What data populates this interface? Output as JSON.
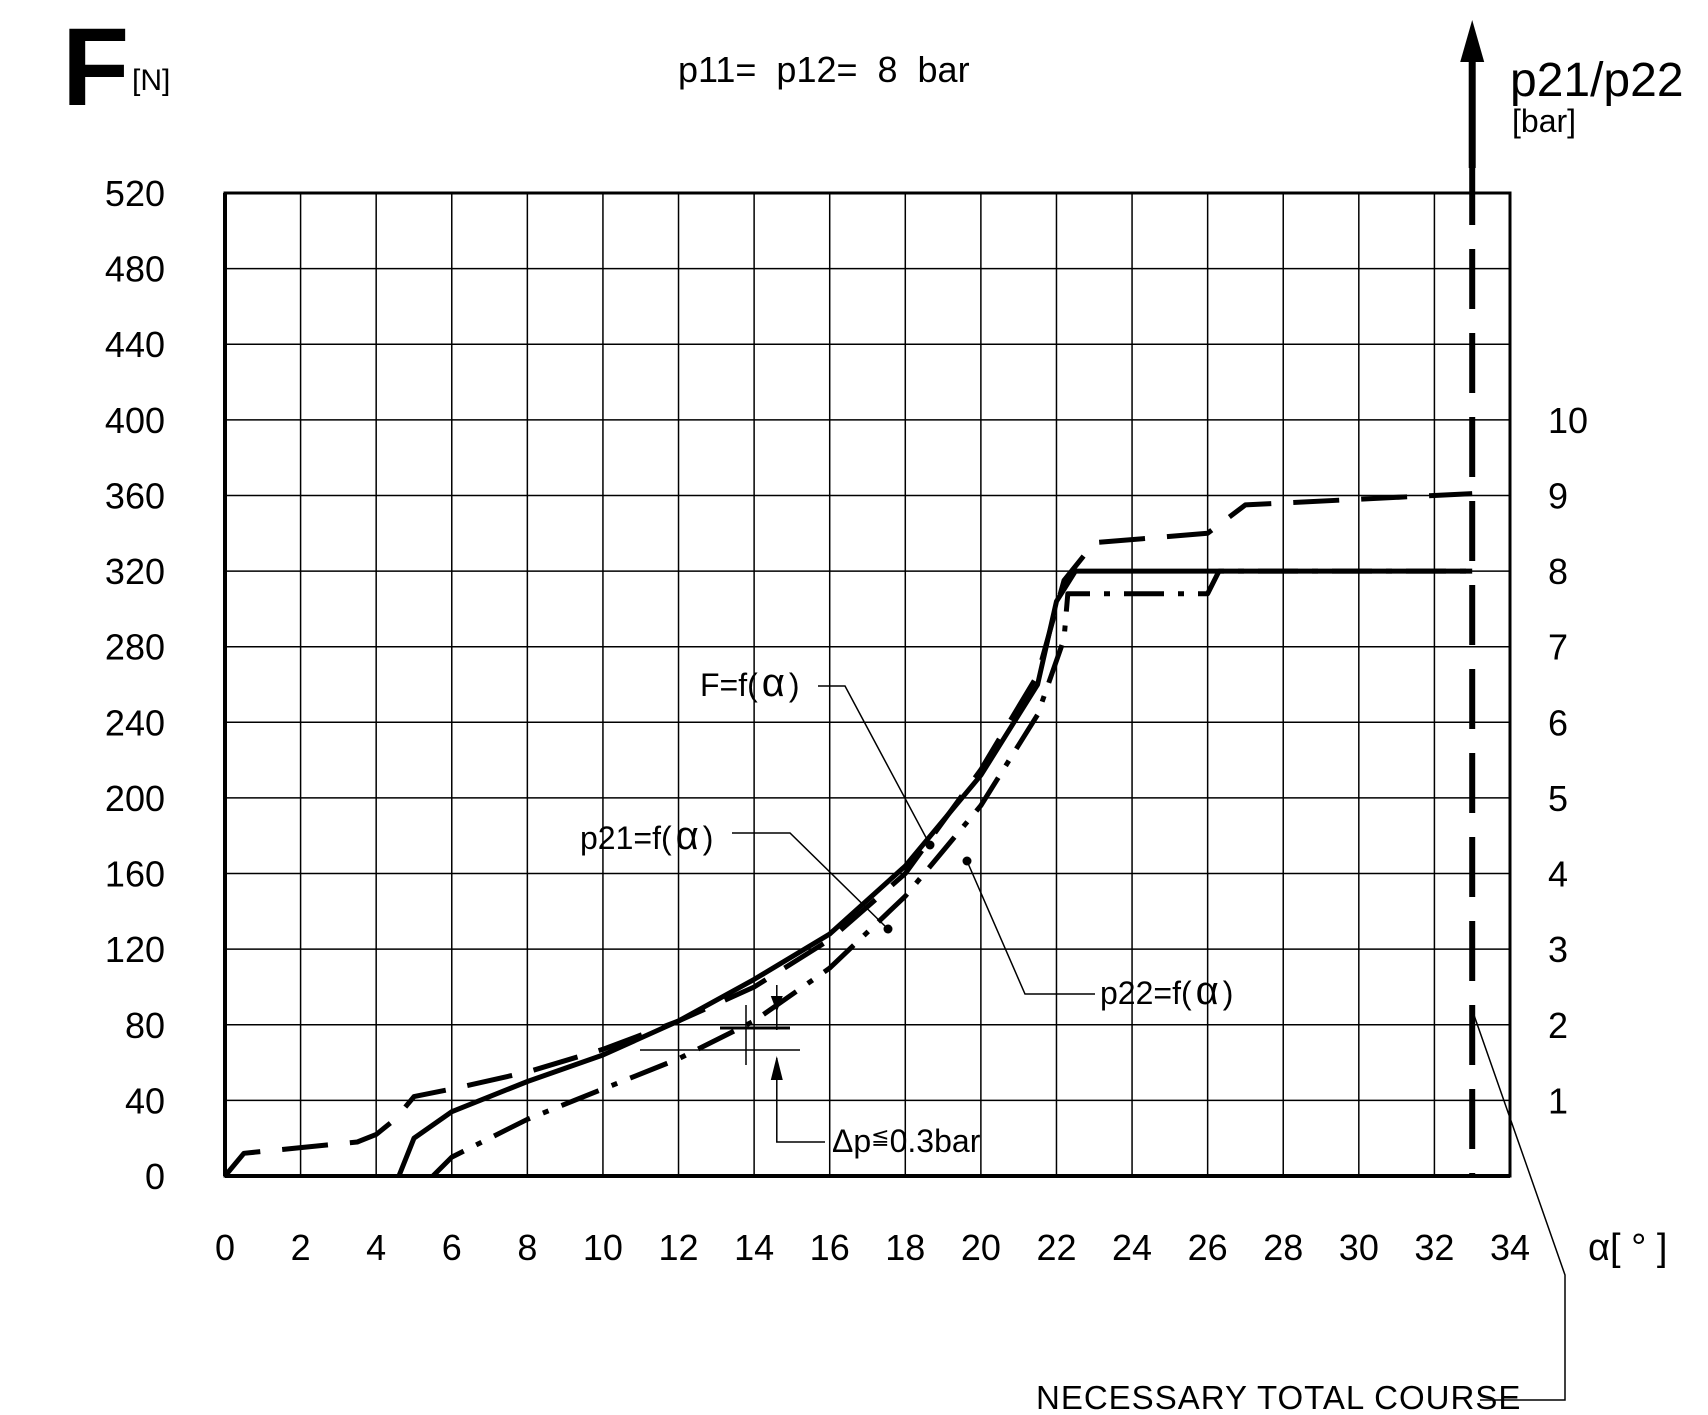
{
  "chart_data": {
    "type": "line",
    "title": "p11=  p12=  8  bar",
    "y_left": {
      "symbol": "F",
      "unit": "[N]",
      "ylim": [
        0,
        520
      ],
      "ticks": [
        "0",
        "40",
        "80",
        "120",
        "160",
        "200",
        "240",
        "280",
        "320",
        "360",
        "400",
        "440",
        "480",
        "520"
      ]
    },
    "y_right": {
      "label": "p21/p22",
      "unit": "[bar]",
      "ylim": [
        0,
        13
      ],
      "ticks": [
        "1",
        "2",
        "3",
        "4",
        "5",
        "6",
        "7",
        "8",
        "9",
        "10"
      ]
    },
    "x_axis": {
      "label": "α[ ° ]",
      "xlim": [
        0,
        34
      ],
      "ticks": [
        "0",
        "2",
        "4",
        "6",
        "8",
        "10",
        "12",
        "14",
        "16",
        "18",
        "20",
        "22",
        "24",
        "26",
        "28",
        "30",
        "32",
        "34"
      ]
    },
    "grid": true,
    "series": [
      {
        "name": "F=f(α)",
        "axis": "left",
        "style": "dashed",
        "points": [
          [
            0,
            0
          ],
          [
            0.5,
            12
          ],
          [
            2,
            15
          ],
          [
            3.5,
            18
          ],
          [
            4,
            22
          ],
          [
            4.5,
            30
          ],
          [
            5,
            42
          ],
          [
            6,
            46
          ],
          [
            8,
            55
          ],
          [
            10,
            67
          ],
          [
            12,
            82
          ],
          [
            14,
            100
          ],
          [
            16,
            125
          ],
          [
            18,
            160
          ],
          [
            20,
            215
          ],
          [
            21.5,
            265
          ],
          [
            22.2,
            315
          ],
          [
            23,
            335
          ],
          [
            26,
            340
          ],
          [
            27,
            355
          ],
          [
            30,
            358
          ],
          [
            33,
            361
          ]
        ]
      },
      {
        "name": "p21=f(α)",
        "axis": "right",
        "style": "solid",
        "points": [
          [
            4.6,
            0
          ],
          [
            5,
            0.5
          ],
          [
            6,
            0.85
          ],
          [
            8,
            1.25
          ],
          [
            10,
            1.6
          ],
          [
            12,
            2.05
          ],
          [
            14,
            2.6
          ],
          [
            16,
            3.2
          ],
          [
            18,
            4.1
          ],
          [
            20,
            5.3
          ],
          [
            21.5,
            6.5
          ],
          [
            22,
            7.6
          ],
          [
            22.5,
            8
          ],
          [
            33,
            8
          ]
        ]
      },
      {
        "name": "p22=f(α)",
        "axis": "right",
        "style": "dash-dot",
        "points": [
          [
            5.5,
            0
          ],
          [
            6,
            0.25
          ],
          [
            8,
            0.75
          ],
          [
            10,
            1.15
          ],
          [
            12,
            1.55
          ],
          [
            14,
            2.05
          ],
          [
            16,
            2.75
          ],
          [
            18,
            3.7
          ],
          [
            20,
            4.9
          ],
          [
            21.5,
            6.1
          ],
          [
            22.2,
            7.1
          ],
          [
            22.3,
            7.7
          ],
          [
            26,
            7.7
          ],
          [
            26.3,
            8
          ],
          [
            33,
            8
          ]
        ]
      }
    ],
    "annotations": {
      "f_label": "F=f(",
      "p21_label": "p21=f(",
      "p22_label": "p22=f(",
      "alpha": "α",
      "close_paren": ")",
      "delta_p": "Δp",
      "delta_p_rel": "≦",
      "delta_p_value": "0.3bar",
      "course_marker_x": 33,
      "course_label": "NECESSARY TOTAL COURSE"
    }
  }
}
